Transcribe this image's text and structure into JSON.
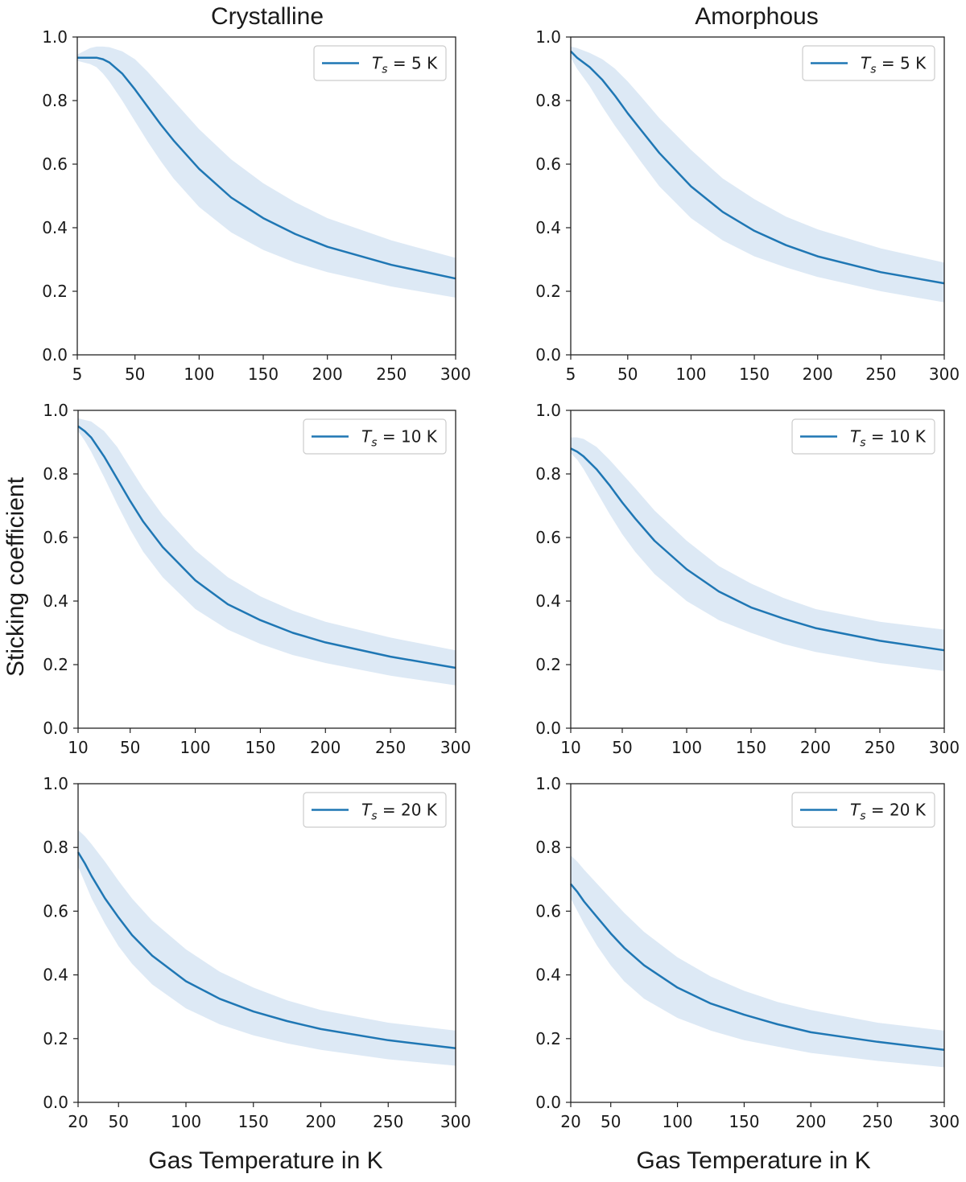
{
  "figure": {
    "column_titles": [
      "Crystalline",
      "Amorphous"
    ],
    "ylabel": "Sticking coefficient",
    "xlabel": "Gas Temperature in K"
  },
  "colors": {
    "line": "#1f77b4",
    "band": "#c6dbef"
  },
  "chart_data": [
    {
      "type": "line",
      "title": "Crystalline",
      "ylim": [
        0,
        1
      ],
      "xlim": [
        5,
        300
      ],
      "xticks": [
        5,
        50,
        100,
        150,
        200,
        250,
        300
      ],
      "yticks": [
        "0.0",
        "0.2",
        "0.4",
        "0.6",
        "0.8",
        "1.0"
      ],
      "legend": {
        "prefix": "T",
        "sub": "s",
        "suffix": " = 5 K",
        "position": "top-right"
      },
      "series": [
        {
          "name": "Ts = 5 K",
          "x": [
            5,
            10,
            15,
            20,
            25,
            30,
            40,
            50,
            60,
            70,
            80,
            100,
            125,
            150,
            175,
            200,
            250,
            300
          ],
          "y": [
            0.935,
            0.935,
            0.935,
            0.935,
            0.93,
            0.92,
            0.885,
            0.835,
            0.78,
            0.725,
            0.675,
            0.585,
            0.495,
            0.43,
            0.38,
            0.34,
            0.283,
            0.24
          ],
          "lower": [
            0.925,
            0.92,
            0.915,
            0.905,
            0.885,
            0.86,
            0.8,
            0.735,
            0.67,
            0.61,
            0.555,
            0.465,
            0.385,
            0.33,
            0.29,
            0.26,
            0.215,
            0.18
          ],
          "upper": [
            0.945,
            0.955,
            0.965,
            0.97,
            0.97,
            0.968,
            0.955,
            0.93,
            0.89,
            0.845,
            0.8,
            0.71,
            0.615,
            0.54,
            0.48,
            0.43,
            0.36,
            0.305
          ]
        }
      ]
    },
    {
      "type": "line",
      "title": "Amorphous",
      "ylim": [
        0,
        1
      ],
      "xlim": [
        5,
        300
      ],
      "xticks": [
        5,
        50,
        100,
        150,
        200,
        250,
        300
      ],
      "yticks": [
        "0.0",
        "0.2",
        "0.4",
        "0.6",
        "0.8",
        "1.0"
      ],
      "legend": {
        "prefix": "T",
        "sub": "s",
        "suffix": " = 5 K",
        "position": "top-right"
      },
      "series": [
        {
          "name": "Ts = 5 K",
          "x": [
            5,
            10,
            20,
            30,
            40,
            50,
            60,
            75,
            100,
            125,
            150,
            175,
            200,
            250,
            300
          ],
          "y": [
            0.955,
            0.935,
            0.905,
            0.865,
            0.815,
            0.76,
            0.71,
            0.635,
            0.53,
            0.45,
            0.39,
            0.345,
            0.31,
            0.26,
            0.225
          ],
          "lower": [
            0.935,
            0.9,
            0.845,
            0.78,
            0.72,
            0.665,
            0.61,
            0.53,
            0.43,
            0.36,
            0.31,
            0.275,
            0.245,
            0.2,
            0.165
          ],
          "upper": [
            0.97,
            0.965,
            0.95,
            0.93,
            0.9,
            0.86,
            0.815,
            0.745,
            0.645,
            0.555,
            0.49,
            0.435,
            0.395,
            0.335,
            0.29
          ]
        }
      ]
    },
    {
      "type": "line",
      "title": "",
      "ylim": [
        0,
        1
      ],
      "xlim": [
        10,
        300
      ],
      "xticks": [
        10,
        50,
        100,
        150,
        200,
        250,
        300
      ],
      "yticks": [
        "0.0",
        "0.2",
        "0.4",
        "0.6",
        "0.8",
        "1.0"
      ],
      "legend": {
        "prefix": "T",
        "sub": "s",
        "suffix": " = 10 K",
        "position": "top-right"
      },
      "series": [
        {
          "name": "Ts = 10 K",
          "x": [
            10,
            15,
            20,
            30,
            40,
            50,
            60,
            75,
            100,
            125,
            150,
            175,
            200,
            250,
            300
          ],
          "y": [
            0.95,
            0.935,
            0.915,
            0.855,
            0.785,
            0.715,
            0.65,
            0.57,
            0.465,
            0.39,
            0.34,
            0.3,
            0.27,
            0.225,
            0.19
          ],
          "lower": [
            0.935,
            0.905,
            0.87,
            0.79,
            0.705,
            0.625,
            0.555,
            0.475,
            0.375,
            0.31,
            0.265,
            0.23,
            0.205,
            0.165,
            0.135
          ],
          "upper": [
            0.975,
            0.97,
            0.965,
            0.935,
            0.885,
            0.82,
            0.755,
            0.67,
            0.56,
            0.475,
            0.415,
            0.37,
            0.335,
            0.285,
            0.245
          ]
        }
      ]
    },
    {
      "type": "line",
      "title": "",
      "ylim": [
        0,
        1
      ],
      "xlim": [
        10,
        300
      ],
      "xticks": [
        10,
        50,
        100,
        150,
        200,
        250,
        300
      ],
      "yticks": [
        "0.0",
        "0.2",
        "0.4",
        "0.6",
        "0.8",
        "1.0"
      ],
      "legend": {
        "prefix": "T",
        "sub": "s",
        "suffix": " = 10 K",
        "position": "top-right"
      },
      "series": [
        {
          "name": "Ts = 10 K",
          "x": [
            10,
            15,
            20,
            30,
            40,
            50,
            60,
            75,
            100,
            125,
            150,
            175,
            200,
            250,
            300
          ],
          "y": [
            0.88,
            0.87,
            0.855,
            0.815,
            0.765,
            0.71,
            0.66,
            0.59,
            0.5,
            0.43,
            0.38,
            0.345,
            0.315,
            0.275,
            0.245
          ],
          "lower": [
            0.865,
            0.845,
            0.815,
            0.745,
            0.675,
            0.61,
            0.555,
            0.485,
            0.4,
            0.34,
            0.3,
            0.265,
            0.24,
            0.205,
            0.18
          ],
          "upper": [
            0.915,
            0.915,
            0.91,
            0.885,
            0.845,
            0.8,
            0.755,
            0.685,
            0.59,
            0.51,
            0.455,
            0.41,
            0.375,
            0.335,
            0.31
          ]
        }
      ]
    },
    {
      "type": "line",
      "title": "",
      "ylim": [
        0,
        1
      ],
      "xlim": [
        20,
        300
      ],
      "xticks": [
        20,
        50,
        100,
        150,
        200,
        250,
        300
      ],
      "yticks": [
        "0.0",
        "0.2",
        "0.4",
        "0.6",
        "0.8",
        "1.0"
      ],
      "legend": {
        "prefix": "T",
        "sub": "s",
        "suffix": " = 20 K",
        "position": "top-right"
      },
      "series": [
        {
          "name": "Ts = 20 K",
          "x": [
            20,
            25,
            30,
            40,
            50,
            60,
            75,
            100,
            125,
            150,
            175,
            200,
            250,
            300
          ],
          "y": [
            0.785,
            0.75,
            0.71,
            0.64,
            0.58,
            0.525,
            0.46,
            0.38,
            0.325,
            0.285,
            0.255,
            0.23,
            0.195,
            0.17
          ],
          "lower": [
            0.74,
            0.69,
            0.64,
            0.56,
            0.49,
            0.435,
            0.37,
            0.295,
            0.245,
            0.21,
            0.185,
            0.165,
            0.135,
            0.115
          ],
          "upper": [
            0.855,
            0.835,
            0.81,
            0.755,
            0.695,
            0.64,
            0.57,
            0.48,
            0.41,
            0.36,
            0.32,
            0.29,
            0.25,
            0.225
          ]
        }
      ]
    },
    {
      "type": "line",
      "title": "",
      "ylim": [
        0,
        1
      ],
      "xlim": [
        20,
        300
      ],
      "xticks": [
        20,
        50,
        100,
        150,
        200,
        250,
        300
      ],
      "yticks": [
        "0.0",
        "0.2",
        "0.4",
        "0.6",
        "0.8",
        "1.0"
      ],
      "legend": {
        "prefix": "T",
        "sub": "s",
        "suffix": " = 20 K",
        "position": "top-right"
      },
      "series": [
        {
          "name": "Ts = 20 K",
          "x": [
            20,
            25,
            30,
            40,
            50,
            60,
            75,
            100,
            125,
            150,
            175,
            200,
            250,
            300
          ],
          "y": [
            0.685,
            0.66,
            0.63,
            0.58,
            0.53,
            0.485,
            0.43,
            0.36,
            0.31,
            0.275,
            0.245,
            0.22,
            0.19,
            0.165
          ],
          "lower": [
            0.64,
            0.6,
            0.56,
            0.49,
            0.43,
            0.38,
            0.325,
            0.265,
            0.225,
            0.195,
            0.175,
            0.155,
            0.13,
            0.11
          ],
          "upper": [
            0.775,
            0.755,
            0.73,
            0.685,
            0.64,
            0.595,
            0.535,
            0.455,
            0.395,
            0.35,
            0.315,
            0.29,
            0.25,
            0.225
          ]
        }
      ]
    }
  ]
}
